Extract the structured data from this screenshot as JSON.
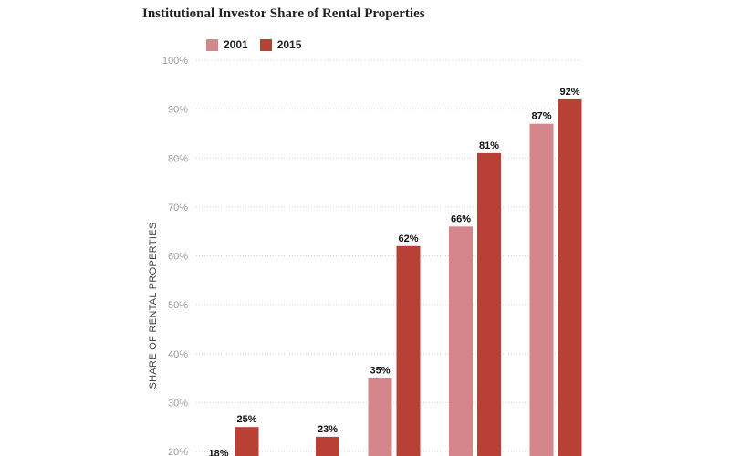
{
  "chart_data": {
    "type": "bar",
    "title": "Institutional Investor Share of Rental Properties",
    "ylabel": "SHARE OF RENTAL PROPERTIES",
    "xlabel": "",
    "ylim": [
      20,
      100
    ],
    "yticks": [
      20,
      30,
      40,
      50,
      60,
      70,
      80,
      90,
      100
    ],
    "ytick_labels": [
      "20%",
      "30%",
      "40%",
      "50%",
      "60%",
      "70%",
      "80%",
      "90%",
      "100%"
    ],
    "grid": true,
    "legend_position": "top-left",
    "series": [
      {
        "name": "2001",
        "color": "#d4868a",
        "values": [
          18,
          null,
          35,
          66,
          87
        ],
        "labels": [
          "18%",
          "",
          "35%",
          "66%",
          "87%"
        ]
      },
      {
        "name": "2015",
        "color": "#b84034",
        "values": [
          25,
          23,
          62,
          81,
          92
        ],
        "labels": [
          "25%",
          "23%",
          "62%",
          "81%",
          "92%"
        ]
      }
    ]
  }
}
